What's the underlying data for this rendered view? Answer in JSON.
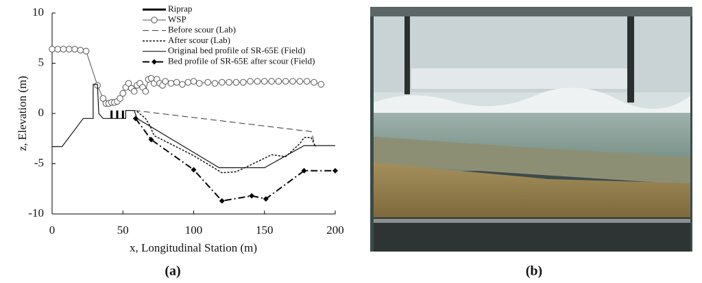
{
  "chart_data": {
    "type": "line",
    "x_label": "x, Longitudinal Station (m)",
    "y_label": "z, Elevation (m)",
    "xlim": [
      0,
      200
    ],
    "xticks": [
      0,
      50,
      100,
      150,
      200
    ],
    "ylim": [
      -10,
      10
    ],
    "yticks": [
      -10,
      -5,
      0,
      5,
      10
    ],
    "grid": false,
    "series": [
      {
        "name": "Riprap",
        "color": "#000000",
        "style": "solid",
        "width": 3,
        "marker": "none",
        "x": [
          42,
          42,
          44,
          46,
          46,
          48,
          50,
          50
        ],
        "values": [
          -0.5,
          0.3,
          null,
          -0.5,
          0.3,
          null,
          -0.5,
          0.3
        ]
      },
      {
        "name": "WSP",
        "color": "#555555",
        "style": "solid",
        "width": 1,
        "marker": "circle",
        "x": [
          0,
          4,
          8,
          12,
          16,
          20,
          24,
          32,
          36,
          38,
          40,
          42,
          44,
          46,
          48,
          50,
          52,
          54,
          56,
          58,
          60,
          62,
          64,
          66,
          68,
          70,
          72,
          74,
          76,
          78,
          80,
          84,
          88,
          92,
          96,
          100,
          104,
          110,
          115,
          120,
          125,
          130,
          135,
          140,
          145,
          150,
          155,
          160,
          165,
          170,
          175,
          180,
          185,
          190
        ],
        "values": [
          6.4,
          6.4,
          6.4,
          6.4,
          6.4,
          6.3,
          6.2,
          2.8,
          1.5,
          1.0,
          1.0,
          1.1,
          1.1,
          1.2,
          1.5,
          2.0,
          2.6,
          3.0,
          2.5,
          2.2,
          2.8,
          3.0,
          2.6,
          2.2,
          3.4,
          3.5,
          3.0,
          3.4,
          3.0,
          2.8,
          3.2,
          3.0,
          3.1,
          2.9,
          3.1,
          3.2,
          3.0,
          3.1,
          3.0,
          3.1,
          3.1,
          3.1,
          3.1,
          3.2,
          3.2,
          3.2,
          3.2,
          3.2,
          3.2,
          3.2,
          3.2,
          3.2,
          3.1,
          2.9
        ]
      },
      {
        "name": "Before scour (Lab)",
        "color": "#333333",
        "style": "dashed",
        "width": 1,
        "marker": "none",
        "x": [
          58,
          70,
          183,
          186
        ],
        "values": [
          0.3,
          0.1,
          -1.8,
          -3.3
        ]
      },
      {
        "name": "After scour (Lab)",
        "color": "#111111",
        "style": "dotted",
        "width": 1.5,
        "marker": "none",
        "x": [
          60,
          66,
          69,
          72,
          100,
          120,
          130,
          145,
          155,
          165,
          175,
          178,
          183,
          186
        ],
        "values": [
          0.2,
          -0.5,
          -1.2,
          -2.2,
          -4.2,
          -5.9,
          -5.8,
          -4.8,
          -4.1,
          -4.3,
          -3.0,
          -2.4,
          -2.4,
          -3.3
        ]
      },
      {
        "name": "Original bed profile of SR-65E (Field)",
        "color": "#111111",
        "style": "solid",
        "width": 1.2,
        "marker": "none",
        "x": [
          0,
          7,
          22,
          29,
          29,
          32,
          33,
          36,
          52,
          52,
          58,
          60,
          118,
          150,
          178,
          200
        ],
        "values": [
          -3.3,
          -3.3,
          -0.5,
          -0.5,
          2.9,
          2.9,
          0.0,
          -0.5,
          -0.5,
          0.3,
          0.3,
          -0.5,
          -5.4,
          -5.4,
          -3.2,
          -3.2
        ]
      },
      {
        "name": "Bed profile of SR-65E after scour (Field)",
        "color": "#000000",
        "style": "dashdot",
        "width": 2,
        "marker": "diamond",
        "x": [
          59,
          70,
          100,
          120,
          141,
          151,
          178,
          200
        ],
        "values": [
          -0.5,
          -2.6,
          -5.6,
          -8.7,
          -8.2,
          -8.5,
          -5.7,
          -5.7
        ]
      }
    ]
  },
  "panels": [
    "(a)",
    "(b)"
  ]
}
